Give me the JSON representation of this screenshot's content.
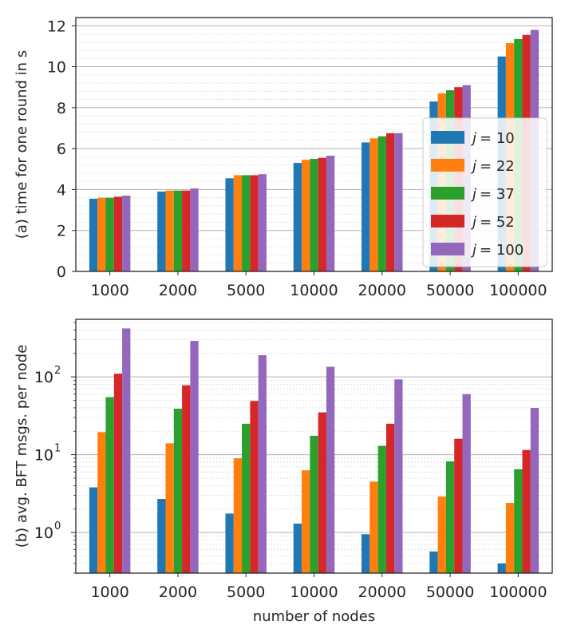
{
  "colors": {
    "series": [
      "#1f77b4",
      "#ff7f0e",
      "#2ca02c",
      "#d62728",
      "#9467bd"
    ],
    "grid_major": "#b0b0b0",
    "grid_minor": "#d9d9d9",
    "axes": "#262626"
  },
  "chart_data": [
    {
      "type": "bar",
      "panel": "top",
      "title": "",
      "ylabel": "(a) time for one round in s",
      "xlabel": "",
      "categories": [
        "1000",
        "2000",
        "5000",
        "10000",
        "20000",
        "50000",
        "100000"
      ],
      "ylim": [
        0,
        12.4
      ],
      "yscale": "linear",
      "yticks": [
        0,
        2,
        4,
        6,
        8,
        10,
        12
      ],
      "ytick_labels": [
        "0",
        "2",
        "4",
        "6",
        "8",
        "10",
        "12"
      ],
      "grid": true,
      "legend": "right, middle",
      "series": [
        {
          "name": "j = 10",
          "values": [
            3.55,
            3.9,
            4.55,
            5.3,
            6.3,
            8.3,
            10.5
          ]
        },
        {
          "name": "j = 22",
          "values": [
            3.6,
            3.95,
            4.7,
            5.45,
            6.5,
            8.7,
            11.15
          ]
        },
        {
          "name": "j = 37",
          "values": [
            3.6,
            3.95,
            4.7,
            5.5,
            6.6,
            8.85,
            11.35
          ]
        },
        {
          "name": "j = 52",
          "values": [
            3.65,
            3.95,
            4.7,
            5.55,
            6.75,
            9.0,
            11.55
          ]
        },
        {
          "name": "j = 100",
          "values": [
            3.7,
            4.05,
            4.75,
            5.65,
            6.75,
            9.1,
            11.8
          ]
        }
      ],
      "legend_entries": [
        {
          "j": "j",
          "eq": "= 10"
        },
        {
          "j": "j",
          "eq": "= 22"
        },
        {
          "j": "j",
          "eq": "= 37"
        },
        {
          "j": "j",
          "eq": "= 52"
        },
        {
          "j": "j",
          "eq": "= 100"
        }
      ]
    },
    {
      "type": "bar",
      "panel": "bottom",
      "title": "",
      "ylabel": "(b) avg. BFT msgs. per node",
      "xlabel": "number of nodes",
      "categories": [
        "1000",
        "2000",
        "5000",
        "10000",
        "20000",
        "50000",
        "100000"
      ],
      "yscale": "log",
      "ylim": [
        0.3,
        550
      ],
      "yticks": [
        1,
        10,
        100
      ],
      "ytick_labels": [
        {
          "base": "10",
          "exp": "0"
        },
        {
          "base": "10",
          "exp": "1"
        },
        {
          "base": "10",
          "exp": "2"
        }
      ],
      "grid": true,
      "series": [
        {
          "name": "j = 10",
          "values": [
            3.8,
            2.7,
            1.75,
            1.3,
            0.95,
            0.57,
            0.4
          ]
        },
        {
          "name": "j = 22",
          "values": [
            19.5,
            14.0,
            9.0,
            6.3,
            4.5,
            2.9,
            2.4
          ]
        },
        {
          "name": "j = 37",
          "values": [
            55,
            39,
            25,
            17.5,
            13,
            8.2,
            6.5
          ]
        },
        {
          "name": "j = 52",
          "values": [
            110,
            78,
            49,
            35,
            25,
            16,
            11.5
          ]
        },
        {
          "name": "j = 100",
          "values": [
            420,
            290,
            190,
            135,
            93,
            60,
            40
          ]
        }
      ]
    }
  ]
}
